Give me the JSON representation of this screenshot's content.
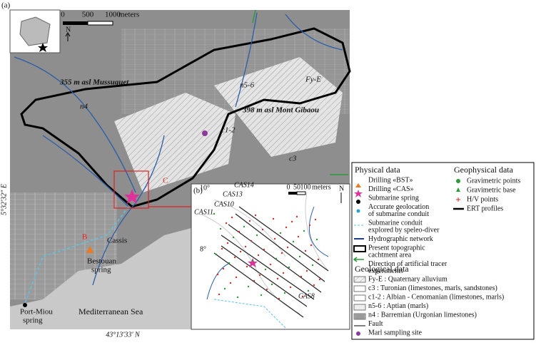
{
  "panel_a": {
    "label": "(a)",
    "scale": {
      "ticks": [
        "0",
        "500",
        "1000"
      ],
      "unit": "meters"
    },
    "north": "N",
    "peaks": [
      "355 m asl Mussuguet",
      "398 m asl Mont Gibaou"
    ],
    "units": [
      "n4",
      "n5-6",
      "Fy-E",
      "c1-2",
      "c3"
    ],
    "sites": [
      "C",
      "B",
      "Cassis",
      [
        "Bestouan",
        "spring"
      ],
      [
        "Port-Miou",
        "spring"
      ],
      "Mediterranean Sea"
    ],
    "lat": "43°13'33' N",
    "lon": "5°32'32\" E"
  },
  "panel_b": {
    "label": "(b)",
    "scale": {
      "ticks": [
        "0",
        "50",
        "100"
      ],
      "unit": "meters"
    },
    "north": "N",
    "dips": [
      "10°",
      "8°"
    ],
    "profiles": [
      "CAS14",
      "CAS13",
      "CAS10",
      "CAS11",
      "CAS8"
    ]
  },
  "legend": {
    "physical": {
      "title": "Physical data",
      "items": [
        [
          "Drilling «BST»"
        ],
        [
          "Drilling «CAS»"
        ],
        [
          "Submarine spring"
        ],
        [
          "Accurate geolocation",
          "of submarine conduit"
        ],
        [
          "Submarine conduit",
          "explored by speleo-diver"
        ],
        [
          "Hydrographic network"
        ],
        [
          "Present topographic",
          "cachtment area"
        ],
        [
          "Direction of artificial tracer",
          "experiments"
        ]
      ]
    },
    "geophysical": {
      "title": "Geophysical data",
      "items": [
        "Gravimetric points",
        "Gravimetric base",
        "H/V points",
        "ERT profiles"
      ]
    },
    "geological": {
      "title": "Geological data",
      "items": [
        "Fy-E : Quaternary alluvium",
        "c3 : Turonian (limestones, marls, sandstones)",
        "c1-2 : Albian - Cenomanian (limestones, marls)",
        "n5-6 : Aptian (marls)",
        "n4 : Barremian (Urgonian limestones)",
        "Fault",
        "Marl sampling site"
      ]
    }
  }
}
